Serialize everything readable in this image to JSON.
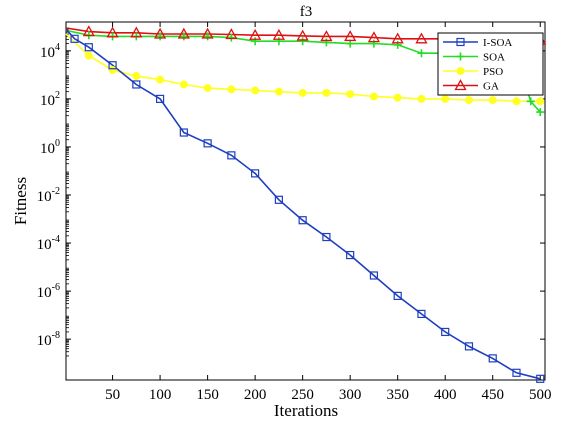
{
  "chart_data": {
    "type": "line",
    "title": "f3",
    "xlabel": "Iterations",
    "ylabel": "Fitness",
    "xlim": [
      1,
      505
    ],
    "ylim_log10": [
      -9.7,
      5.2
    ],
    "yscale": "log",
    "grid": false,
    "legend_position": "top-right",
    "x_ticks": [
      {
        "value": 50,
        "label": "50"
      },
      {
        "value": 100,
        "label": "100"
      },
      {
        "value": 150,
        "label": "150"
      },
      {
        "value": 200,
        "label": "200"
      },
      {
        "value": 250,
        "label": "250"
      },
      {
        "value": 300,
        "label": "300"
      },
      {
        "value": 350,
        "label": "350"
      },
      {
        "value": 400,
        "label": "400"
      },
      {
        "value": 450,
        "label": "450"
      },
      {
        "value": 500,
        "label": "500"
      }
    ],
    "y_ticks": [
      {
        "exp": 4,
        "base": "10",
        "sup": "4"
      },
      {
        "exp": 2,
        "base": "10",
        "sup": "2"
      },
      {
        "exp": 0,
        "base": "10",
        "sup": "0"
      },
      {
        "exp": -2,
        "base": "10",
        "sup": "-2"
      },
      {
        "exp": -4,
        "base": "10",
        "sup": "-4"
      },
      {
        "exp": -6,
        "base": "10",
        "sup": "-6"
      },
      {
        "exp": -8,
        "base": "10",
        "sup": "-8"
      }
    ],
    "series": [
      {
        "name": "I-SOA",
        "color": "#1f3fbf",
        "marker": "square",
        "x": [
          1,
          10,
          25,
          50,
          75,
          100,
          125,
          150,
          175,
          200,
          225,
          250,
          275,
          300,
          325,
          350,
          375,
          400,
          425,
          450,
          475,
          500
        ],
        "log10_y": [
          4.9,
          4.5,
          4.15,
          3.4,
          2.6,
          2.0,
          0.6,
          0.15,
          -0.35,
          -1.1,
          -2.2,
          -3.05,
          -3.75,
          -4.5,
          -5.35,
          -6.2,
          -6.95,
          -7.7,
          -8.3,
          -8.8,
          -9.4,
          -9.65
        ]
      },
      {
        "name": "SOA",
        "color": "#22dd22",
        "marker": "plus",
        "x": [
          1,
          25,
          50,
          75,
          100,
          125,
          150,
          175,
          200,
          225,
          250,
          275,
          300,
          325,
          350,
          375,
          400,
          425,
          450,
          475,
          490,
          500
        ],
        "log10_y": [
          4.85,
          4.65,
          4.6,
          4.6,
          4.6,
          4.6,
          4.6,
          4.55,
          4.4,
          4.4,
          4.4,
          4.35,
          4.3,
          4.3,
          4.25,
          3.9,
          3.9,
          3.85,
          3.8,
          3.8,
          1.9,
          1.45
        ]
      },
      {
        "name": "PSO",
        "color": "#ffff22",
        "marker": "circle",
        "x": [
          1,
          25,
          50,
          75,
          100,
          125,
          150,
          175,
          200,
          225,
          250,
          275,
          300,
          325,
          350,
          375,
          400,
          425,
          450,
          475,
          500
        ],
        "log10_y": [
          4.7,
          3.8,
          3.2,
          2.95,
          2.8,
          2.6,
          2.45,
          2.4,
          2.35,
          2.3,
          2.25,
          2.25,
          2.2,
          2.1,
          2.05,
          2.0,
          2.0,
          1.95,
          1.95,
          1.9,
          1.9
        ]
      },
      {
        "name": "GA",
        "color": "#dd1111",
        "marker": "triangle",
        "x": [
          1,
          25,
          50,
          75,
          100,
          125,
          150,
          175,
          200,
          225,
          250,
          275,
          300,
          325,
          350,
          375,
          400,
          425,
          450,
          475,
          500
        ],
        "log10_y": [
          4.95,
          4.8,
          4.75,
          4.75,
          4.7,
          4.7,
          4.7,
          4.68,
          4.65,
          4.65,
          4.62,
          4.6,
          4.6,
          4.55,
          4.5,
          4.5,
          4.5,
          4.48,
          4.45,
          4.45,
          4.45
        ]
      }
    ]
  }
}
